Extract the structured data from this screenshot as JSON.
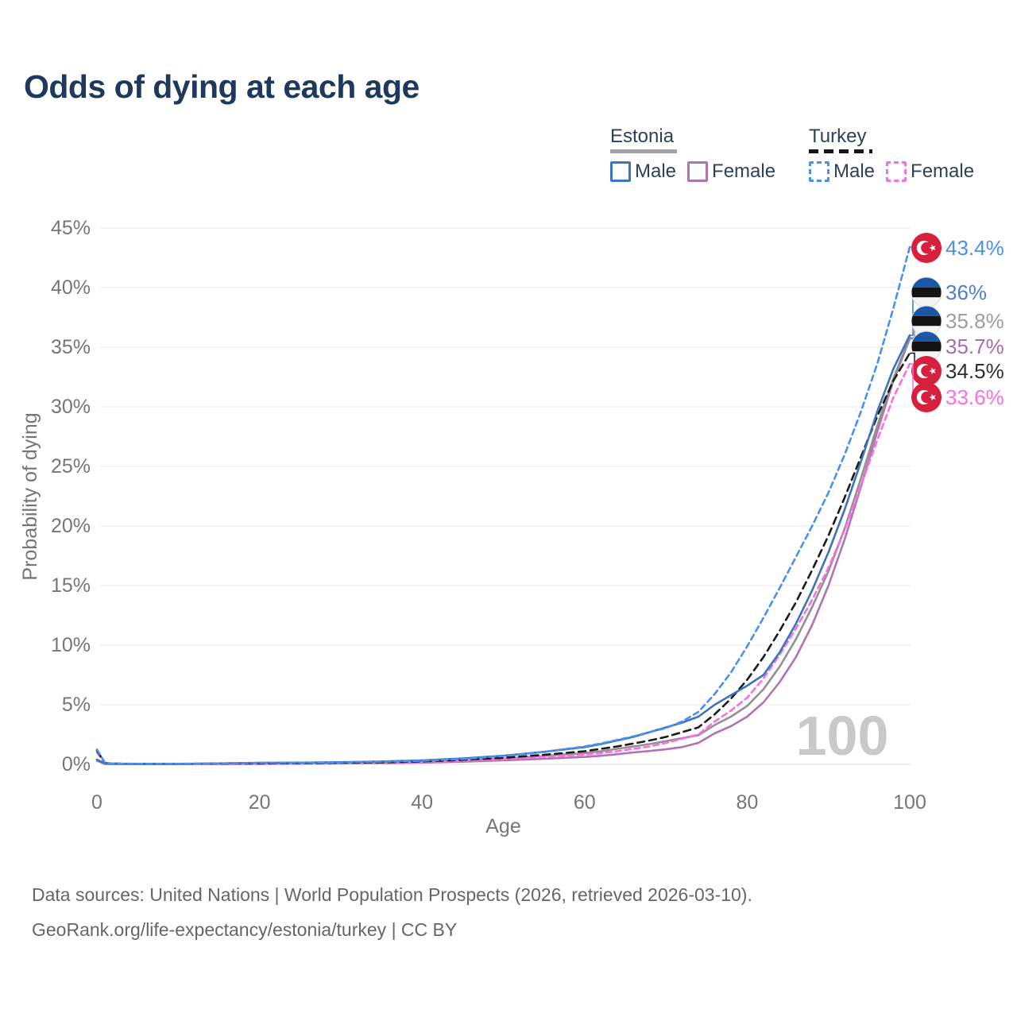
{
  "title": "Odds of dying at each age",
  "legend": {
    "groups": [
      {
        "id": "estonia",
        "label": "Estonia",
        "line_style": "solid",
        "line_color": "#a3a3a3",
        "items": [
          {
            "label": "Male",
            "color": "#3d74ba",
            "style": "solid"
          },
          {
            "label": "Female",
            "color": "#b173b3",
            "style": "solid"
          }
        ]
      },
      {
        "id": "turkey",
        "label": "Turkey",
        "line_style": "dashed",
        "line_color": "#161616",
        "items": [
          {
            "label": "Male",
            "color": "#4a90f2",
            "style": "dashed"
          },
          {
            "label": "Female",
            "color": "#fc6ee0",
            "style": "dashed"
          }
        ]
      }
    ]
  },
  "chart_data": {
    "type": "line",
    "title": "Odds of dying at each age",
    "xlabel": "Age",
    "ylabel": "Probability of dying",
    "xlim": [
      0,
      100
    ],
    "ylim": [
      0,
      45
    ],
    "grid": "horizontal",
    "legend_position": "top-right",
    "x_tick_values": [
      0,
      20,
      40,
      60,
      80,
      100
    ],
    "x_tick_labels": [
      "0",
      "20",
      "40",
      "60",
      "80",
      "100"
    ],
    "y_tick_values": [
      0,
      5,
      10,
      15,
      20,
      25,
      30,
      35,
      40,
      45
    ],
    "y_tick_labels": [
      "0%",
      "5%",
      "10%",
      "15%",
      "20%",
      "25%",
      "30%",
      "35%",
      "40%",
      "45%"
    ],
    "age_indicator": "100",
    "ages": [
      0,
      1,
      2,
      5,
      10,
      15,
      20,
      25,
      30,
      35,
      40,
      45,
      50,
      55,
      60,
      62,
      64,
      66,
      68,
      70,
      72,
      74,
      76,
      78,
      80,
      82,
      84,
      86,
      88,
      90,
      92,
      94,
      96,
      98,
      100
    ],
    "series": [
      {
        "name": "Turkey Male",
        "country": "turkey",
        "color": "#4a90f2",
        "dash": "7 5",
        "end_label": "43.4%",
        "label_color": "#4a90f2",
        "values": [
          1.25,
          0.12,
          0.07,
          0.05,
          0.05,
          0.08,
          0.12,
          0.14,
          0.17,
          0.22,
          0.3,
          0.45,
          0.7,
          1.05,
          1.5,
          1.75,
          2.05,
          2.35,
          2.7,
          3.05,
          3.6,
          4.4,
          5.9,
          7.7,
          9.9,
          12.3,
          14.8,
          17.4,
          20.0,
          22.8,
          26.0,
          29.6,
          33.6,
          38.3,
          43.4
        ]
      },
      {
        "name": "Estonia Male",
        "country": "estonia",
        "color": "#3d74ba",
        "dash": "",
        "end_label": "36%",
        "label_color": "#4d7fc9",
        "values": [
          0.4,
          0.06,
          0.04,
          0.03,
          0.03,
          0.08,
          0.13,
          0.15,
          0.18,
          0.24,
          0.33,
          0.5,
          0.72,
          1.05,
          1.45,
          1.7,
          2.0,
          2.3,
          2.7,
          3.1,
          3.5,
          4.0,
          5.0,
          5.8,
          6.6,
          7.5,
          9.4,
          11.8,
          14.6,
          17.8,
          21.4,
          25.4,
          29.6,
          33.2,
          36.0
        ]
      },
      {
        "name": "Estonia Both sexes",
        "country": "estonia",
        "color": "#919191",
        "dash": "",
        "end_label": "35.8%",
        "label_color": "#9e9e9e",
        "values": [
          0.35,
          0.05,
          0.03,
          0.03,
          0.03,
          0.05,
          0.08,
          0.09,
          0.11,
          0.15,
          0.22,
          0.32,
          0.48,
          0.7,
          0.95,
          1.1,
          1.3,
          1.5,
          1.7,
          1.95,
          2.2,
          2.45,
          3.3,
          4.0,
          4.9,
          6.3,
          8.2,
          10.5,
          13.2,
          16.2,
          19.8,
          24.0,
          28.4,
          32.4,
          35.8
        ]
      },
      {
        "name": "Estonia Female",
        "country": "estonia",
        "color": "#b173b3",
        "dash": "",
        "end_label": "35.7%",
        "label_color": "#a76cad",
        "values": [
          0.3,
          0.04,
          0.03,
          0.02,
          0.02,
          0.03,
          0.04,
          0.06,
          0.08,
          0.1,
          0.15,
          0.22,
          0.33,
          0.47,
          0.62,
          0.72,
          0.85,
          1.0,
          1.12,
          1.26,
          1.45,
          1.8,
          2.6,
          3.2,
          4.0,
          5.2,
          6.9,
          9.0,
          11.7,
          15.0,
          18.9,
          23.3,
          27.9,
          32.2,
          35.7
        ]
      },
      {
        "name": "Turkey Both sexes",
        "country": "turkey",
        "color": "#1b1b1b",
        "dash": "9 6",
        "end_label": "34.5%",
        "label_color": "#2e2e2e",
        "values": [
          1.15,
          0.11,
          0.06,
          0.04,
          0.04,
          0.06,
          0.08,
          0.1,
          0.13,
          0.17,
          0.25,
          0.38,
          0.55,
          0.8,
          1.1,
          1.3,
          1.5,
          1.75,
          2.0,
          2.3,
          2.7,
          3.1,
          4.2,
          5.5,
          7.1,
          9.0,
          11.2,
          13.6,
          16.3,
          19.2,
          22.4,
          25.8,
          29.2,
          32.2,
          34.5
        ]
      },
      {
        "name": "Turkey Female",
        "country": "turkey",
        "color": "#fc6ee0",
        "dash": "7 5",
        "end_label": "33.6%",
        "label_color": "#fc6ee0",
        "values": [
          1.0,
          0.1,
          0.05,
          0.03,
          0.03,
          0.04,
          0.06,
          0.08,
          0.1,
          0.13,
          0.2,
          0.3,
          0.45,
          0.62,
          0.82,
          0.95,
          1.1,
          1.3,
          1.5,
          1.8,
          2.15,
          2.5,
          3.6,
          4.5,
          5.6,
          7.2,
          9.2,
          11.4,
          13.8,
          16.5,
          19.7,
          23.4,
          27.2,
          30.8,
          33.6
        ]
      }
    ],
    "flag_colors": {
      "turkey_red": "#d6203c",
      "estonia_blue": "#1c57a5",
      "estonia_black": "#141414",
      "estonia_white": "#f3f3f3"
    }
  },
  "footer": {
    "line1": "Data sources: United Nations | World Population Prospects (2026, retrieved 2026-03-10).",
    "line2": "GeoRank.org/life-expectancy/estonia/turkey | CC BY"
  }
}
